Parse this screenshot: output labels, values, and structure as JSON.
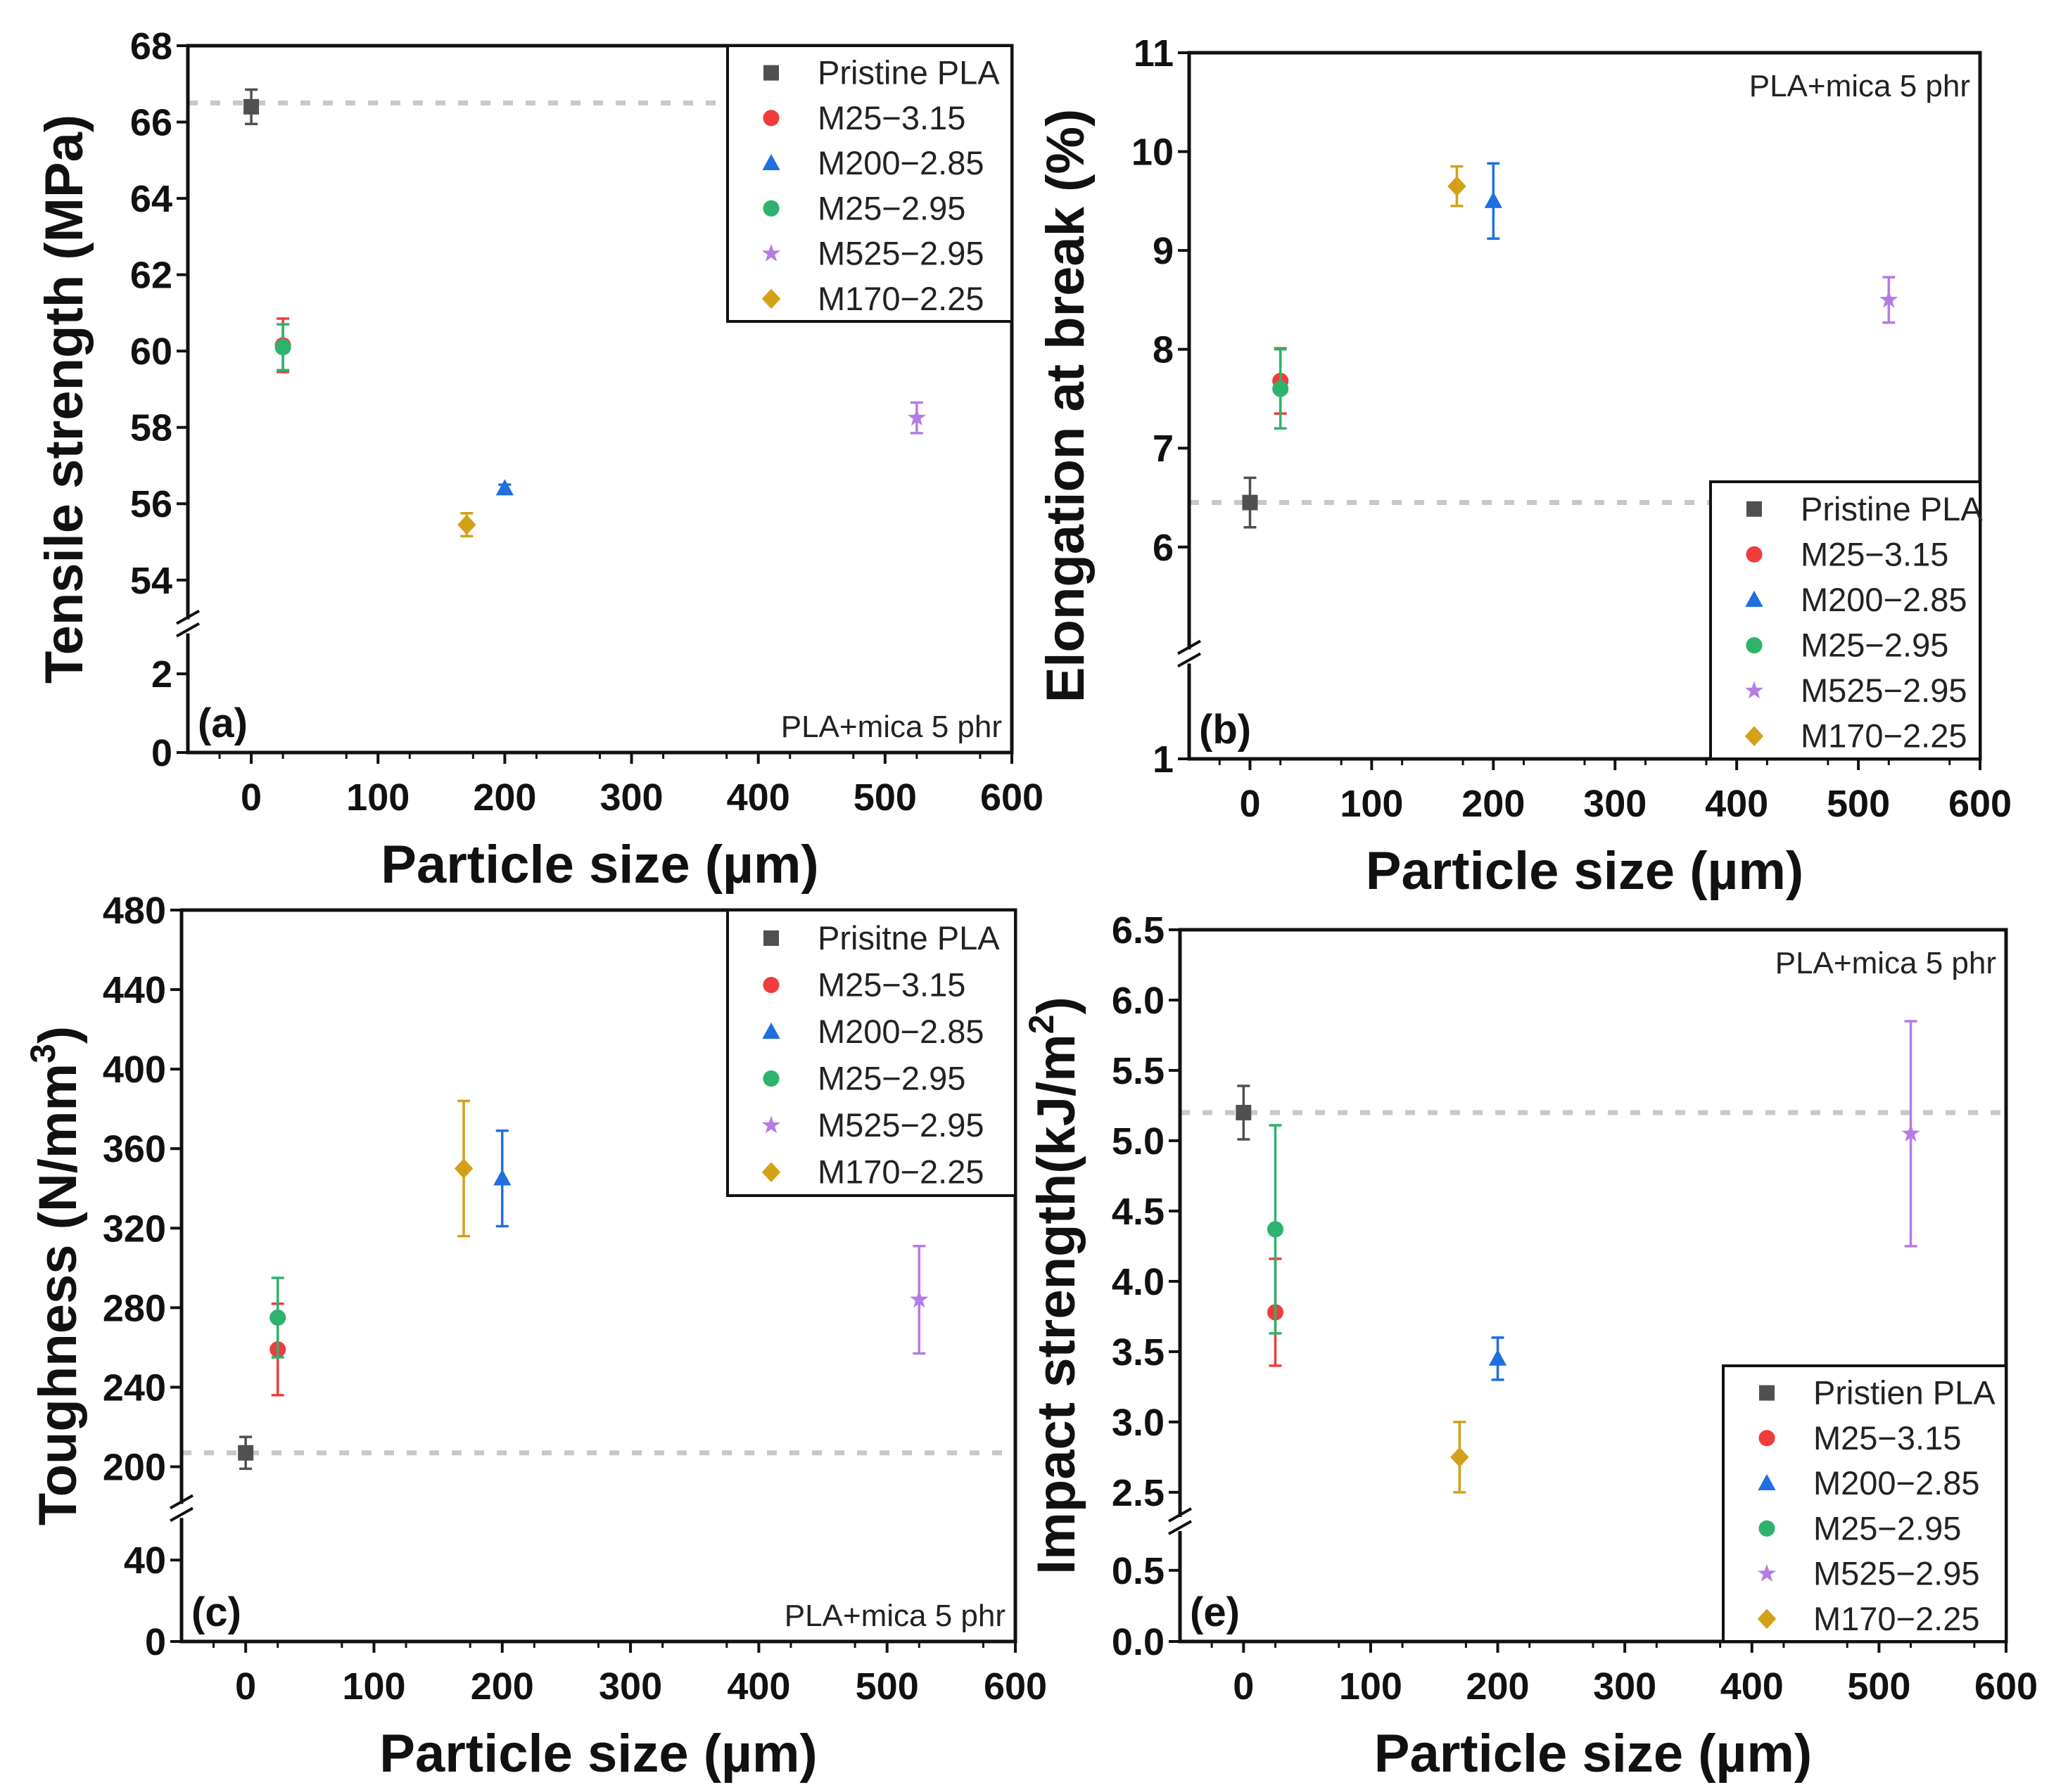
{
  "series_style": {
    "Pristine": {
      "color": "#505050",
      "marker": "square"
    },
    "M25-3.15": {
      "color": "#f03c3c",
      "marker": "circle"
    },
    "M200-2.85": {
      "color": "#1f6fe0",
      "marker": "triangle"
    },
    "M25-2.95": {
      "color": "#2db36b",
      "marker": "circle"
    },
    "M525-2.95": {
      "color": "#b57be6",
      "marker": "star"
    },
    "M170-2.25": {
      "color": "#d4a017",
      "marker": "diamond"
    }
  },
  "chart_data": [
    {
      "type": "scatter",
      "panel_label": "(a)",
      "annotation": "PLA+mica 5 phr",
      "annotation_position": "bottom-right",
      "xlabel": "Particle size (µm)",
      "ylabel": "Tensile strength (MPa)",
      "xlim": [
        -50,
        600
      ],
      "xticks": [
        "0",
        "100",
        "200",
        "300",
        "400",
        "500",
        "600"
      ],
      "y_broken_axis": {
        "lower": [
          0,
          3
        ],
        "upper": [
          53,
          68
        ]
      },
      "yticks": [
        "0",
        "2",
        "54",
        "56",
        "58",
        "60",
        "62",
        "64",
        "66",
        "68"
      ],
      "reference_line": 66.5,
      "legend_position": "top-right",
      "series": [
        {
          "name": "Pristine PLA",
          "style": "Pristine",
          "x": 0,
          "y": 66.4,
          "err": 0.45
        },
        {
          "name": "M25−3.15",
          "style": "M25-3.15",
          "x": 25,
          "y": 60.15,
          "err": 0.7
        },
        {
          "name": "M200−2.85",
          "style": "M200-2.85",
          "x": 200,
          "y": 56.4,
          "err": 0.1
        },
        {
          "name": "M25−2.95",
          "style": "M25-2.95",
          "x": 25,
          "y": 60.1,
          "err": 0.6
        },
        {
          "name": "M525−2.95",
          "style": "M525-2.95",
          "x": 525,
          "y": 58.25,
          "err": 0.4
        },
        {
          "name": "M170−2.25",
          "style": "M170-2.25",
          "x": 170,
          "y": 55.45,
          "err": 0.3
        }
      ]
    },
    {
      "type": "scatter",
      "panel_label": "(b)",
      "annotation": "PLA+mica 5 phr",
      "annotation_position": "top-right",
      "xlabel": "Particle size (µm)",
      "ylabel": "Elongation at break (%)",
      "xlim": [
        -50,
        600
      ],
      "xticks": [
        "0",
        "100",
        "200",
        "300",
        "400",
        "500",
        "600"
      ],
      "y_broken_axis": {
        "lower": [
          1,
          1.9
        ],
        "upper": [
          5,
          11
        ]
      },
      "yticks": [
        "1",
        "6",
        "7",
        "8",
        "9",
        "10",
        "11"
      ],
      "reference_line": 6.45,
      "legend_position": "bottom-right",
      "series": [
        {
          "name": "Pristine PLA",
          "style": "Pristine",
          "x": 0,
          "y": 6.45,
          "err": 0.25
        },
        {
          "name": "M25−3.15",
          "style": "M25-3.15",
          "x": 25,
          "y": 7.68,
          "err": 0.33
        },
        {
          "name": "M200−2.85",
          "style": "M200-2.85",
          "x": 200,
          "y": 9.5,
          "err": 0.38
        },
        {
          "name": "M25−2.95",
          "style": "M25-2.95",
          "x": 25,
          "y": 7.6,
          "err": 0.4
        },
        {
          "name": "M525−2.95",
          "style": "M525-2.95",
          "x": 525,
          "y": 8.5,
          "err": 0.23
        },
        {
          "name": "M170−2.25",
          "style": "M170-2.25",
          "x": 170,
          "y": 9.65,
          "err": 0.2
        }
      ]
    },
    {
      "type": "scatter",
      "panel_label": "(c)",
      "annotation": "PLA+mica 5 phr",
      "annotation_position": "bottom-right",
      "xlabel": "Particle size (µm)",
      "ylabel": "Toughness (N/mm",
      "ylabel_superscript": "3",
      "ylabel_suffix": ")",
      "xlim": [
        -50,
        600
      ],
      "xticks": [
        "0",
        "100",
        "200",
        "300",
        "400",
        "500",
        "600"
      ],
      "y_broken_axis": {
        "lower": [
          0,
          60
        ],
        "upper": [
          182,
          480
        ]
      },
      "yticks": [
        "0",
        "40",
        "200",
        "240",
        "280",
        "320",
        "360",
        "400",
        "440",
        "480"
      ],
      "reference_line": 207,
      "legend_position": "top-right",
      "series": [
        {
          "name": "Prisitne PLA",
          "style": "Pristine",
          "x": 0,
          "y": 207,
          "err": 8
        },
        {
          "name": "M25−3.15",
          "style": "M25-3.15",
          "x": 25,
          "y": 259,
          "err": 23
        },
        {
          "name": "M200−2.85",
          "style": "M200-2.85",
          "x": 200,
          "y": 345,
          "err": 24
        },
        {
          "name": "M25−2.95",
          "style": "M25-2.95",
          "x": 25,
          "y": 275,
          "err": 20
        },
        {
          "name": "M525−2.95",
          "style": "M525-2.95",
          "x": 525,
          "y": 284,
          "err": 27
        },
        {
          "name": "M170−2.25",
          "style": "M170-2.25",
          "x": 170,
          "y": 350,
          "err": 34
        }
      ]
    },
    {
      "type": "scatter",
      "panel_label": "(e)",
      "annotation": "PLA+mica 5 phr",
      "annotation_position": "top-right",
      "xlabel": "Particle size (µm)",
      "ylabel": "Impact strength(kJ/m",
      "ylabel_superscript": "2",
      "ylabel_suffix": ")",
      "xlim": [
        -50,
        600
      ],
      "xticks": [
        "0",
        "100",
        "200",
        "300",
        "400",
        "500",
        "600"
      ],
      "y_broken_axis": {
        "lower": [
          0,
          0.75
        ],
        "upper": [
          2.35,
          6.5
        ]
      },
      "yticks": [
        "0.0",
        "0.5",
        "2.5",
        "3.0",
        "3.5",
        "4.0",
        "4.5",
        "5.0",
        "5.5",
        "6.0",
        "6.5"
      ],
      "reference_line": 5.2,
      "legend_position": "bottom-right",
      "series": [
        {
          "name": "Pristien PLA",
          "style": "Pristine",
          "x": 0,
          "y": 5.2,
          "err": 0.19
        },
        {
          "name": "M25−3.15",
          "style": "M25-3.15",
          "x": 25,
          "y": 3.78,
          "err": 0.38
        },
        {
          "name": "M200−2.85",
          "style": "M200-2.85",
          "x": 200,
          "y": 3.45,
          "err": 0.15
        },
        {
          "name": "M25−2.95",
          "style": "M25-2.95",
          "x": 25,
          "y": 4.37,
          "err": 0.74
        },
        {
          "name": "M525−2.95",
          "style": "M525-2.95",
          "x": 525,
          "y": 5.05,
          "err": 0.8
        },
        {
          "name": "M170−2.25",
          "style": "M170-2.25",
          "x": 170,
          "y": 2.75,
          "err": 0.25
        }
      ]
    }
  ]
}
